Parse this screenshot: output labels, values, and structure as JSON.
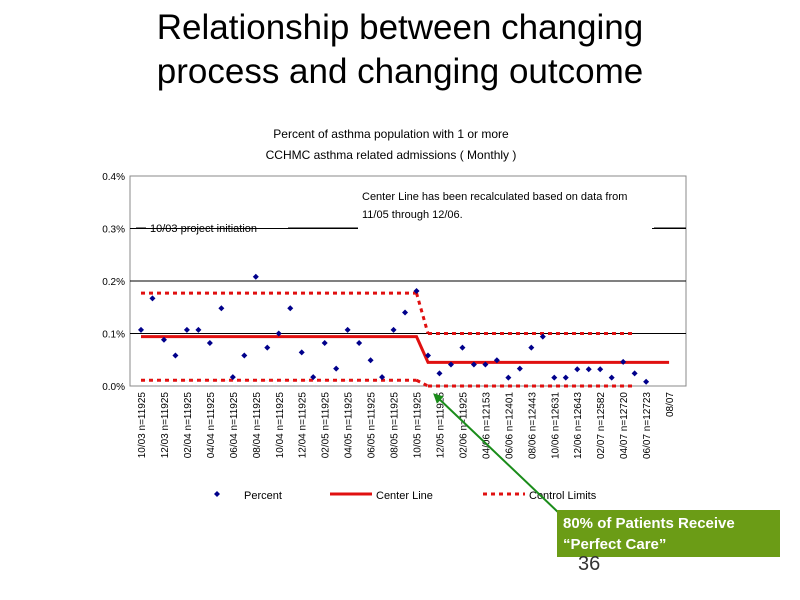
{
  "slide": {
    "title_line1": "Relationship between changing",
    "title_line2": "process and changing outcome",
    "callout_line1": "80% of Patients Receive",
    "callout_line2": "“Perfect Care”",
    "page_number": "36",
    "callout_color": "#6b9c16",
    "arrow_color": "#1a8c1a"
  },
  "chart_data": {
    "type": "line",
    "title_line1": "Percent of asthma population with 1 or more",
    "title_line2": "CCHMC asthma related admissions ( Monthly )",
    "ylim": [
      0,
      0.4
    ],
    "yticks": [
      0.0,
      0.1,
      0.2,
      0.3,
      0.4
    ],
    "ytick_labels": [
      "0.0%",
      "0.1%",
      "0.2%",
      "0.3%",
      "0.4%"
    ],
    "grid": true,
    "x_labels": [
      {
        "i": 0,
        "text": "10/03 n=11925"
      },
      {
        "i": 2,
        "text": "12/03 n=11925"
      },
      {
        "i": 4,
        "text": "02/04 n=11925"
      },
      {
        "i": 6,
        "text": "04/04 n=11925"
      },
      {
        "i": 8,
        "text": "06/04 n=11925"
      },
      {
        "i": 10,
        "text": "08/04 n=11925"
      },
      {
        "i": 12,
        "text": "10/04 n=11925"
      },
      {
        "i": 14,
        "text": "12/04 n=11925"
      },
      {
        "i": 16,
        "text": "02/05 n=11925"
      },
      {
        "i": 18,
        "text": "04/05 n=11925"
      },
      {
        "i": 20,
        "text": "06/05 n=11925"
      },
      {
        "i": 22,
        "text": "08/05 n=11925"
      },
      {
        "i": 24,
        "text": "10/05 n=11925"
      },
      {
        "i": 26,
        "text": "12/05 n=11925"
      },
      {
        "i": 28,
        "text": "02/06 n=11925"
      },
      {
        "i": 30,
        "text": "04/06 n=12153"
      },
      {
        "i": 32,
        "text": "06/06 n=12401"
      },
      {
        "i": 34,
        "text": "08/06 n=12443"
      },
      {
        "i": 36,
        "text": "10/06 n=12631"
      },
      {
        "i": 38,
        "text": "12/06 n=12643"
      },
      {
        "i": 40,
        "text": "02/07 n=12582"
      },
      {
        "i": 42,
        "text": "04/07 n=12720"
      },
      {
        "i": 44,
        "text": "06/07 n=12723"
      },
      {
        "i": 46,
        "text": "08/07"
      }
    ],
    "series": [
      {
        "name": "Percent",
        "color": "#00008b",
        "values": [
          0.107,
          0.167,
          0.088,
          0.058,
          0.107,
          0.107,
          0.082,
          0.148,
          0.017,
          0.058,
          0.208,
          0.073,
          0.1,
          0.148,
          0.064,
          0.017,
          0.082,
          0.033,
          0.107,
          0.082,
          0.049,
          0.017,
          0.107,
          0.14,
          0.181,
          0.058,
          0.024,
          0.041,
          0.073,
          0.041,
          0.041,
          0.049,
          0.016,
          0.033,
          0.073,
          0.094,
          0.016,
          0.016,
          0.032,
          0.032,
          0.032,
          0.016,
          0.046,
          0.024,
          0.008
        ]
      },
      {
        "name": "Center Line",
        "color": "#e01010",
        "segments": [
          {
            "from": 0,
            "to": 24,
            "value": 0.094
          },
          {
            "from": 25,
            "to": 46,
            "value": 0.045
          }
        ]
      },
      {
        "name": "Control Limits",
        "color": "#e01010",
        "upper": [
          {
            "from": 0,
            "to": 24,
            "value": 0.177
          },
          {
            "from": 25,
            "to": 43,
            "value": 0.1
          }
        ],
        "lower": [
          {
            "from": 0,
            "to": 24,
            "value": 0.011
          },
          {
            "from": 25,
            "to": 43,
            "value": 0.0
          }
        ]
      }
    ],
    "annotations": [
      {
        "text": "10/03 project initiation"
      },
      {
        "line1": "Center Line has been recalculated based on data from",
        "line2": "11/05 through 12/06."
      }
    ],
    "legend": [
      "Percent",
      "Center Line",
      "Control Limits"
    ]
  }
}
